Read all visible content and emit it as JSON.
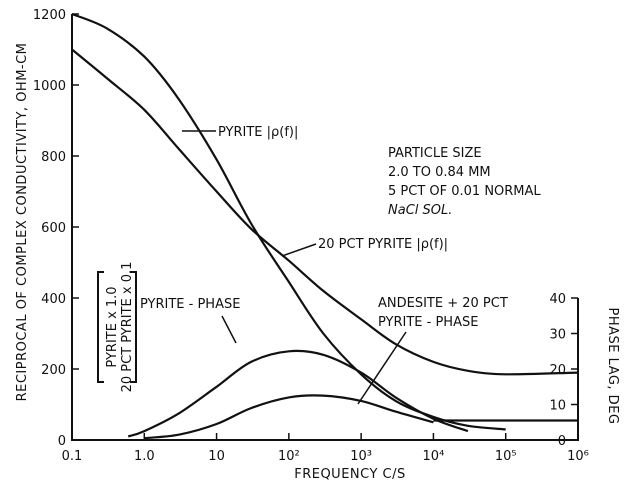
{
  "chart_data": {
    "type": "line",
    "title": "",
    "xlabel": "FREQUENCY C/S",
    "ylabel": "RECIPROCAL OF COMPLEX CONDUCTIVITY, OHM-CM",
    "ylabel_right": "PHASE LAG, DEG",
    "x_scale": "log",
    "xlim": [
      0.1,
      1000000
    ],
    "ylim": [
      0,
      1200
    ],
    "ylim_right": [
      0,
      40
    ],
    "grid": false,
    "x_ticks": [
      "0.1",
      "1.0",
      "10",
      "10²",
      "10³",
      "10⁴",
      "10⁵",
      "10⁶"
    ],
    "y_ticks": [
      "0",
      "200",
      "400",
      "600",
      "800",
      "1000",
      "1200"
    ],
    "y_ticks_right": [
      "0",
      "10",
      "20",
      "30",
      "40"
    ],
    "series": [
      {
        "name": "PYRITE |ρ(f)|",
        "axis": "left",
        "x": [
          0.1,
          0.3,
          1,
          3,
          10,
          30,
          100,
          300,
          1000,
          3000,
          10000,
          30000,
          100000
        ],
        "y": [
          1200,
          1160,
          1080,
          960,
          790,
          610,
          445,
          300,
          185,
          110,
          65,
          40,
          30
        ]
      },
      {
        "name": "20 PCT PYRITE |ρ(f)|",
        "axis": "left",
        "x": [
          0.1,
          0.3,
          1,
          3,
          10,
          30,
          100,
          300,
          1000,
          3000,
          10000,
          30000,
          100000,
          1000000
        ],
        "y": [
          1100,
          1020,
          930,
          820,
          700,
          595,
          505,
          420,
          340,
          270,
          220,
          195,
          185,
          190
        ]
      },
      {
        "name": "PYRITE-PHASE",
        "axis": "right",
        "x": [
          0.6,
          1,
          3,
          10,
          30,
          100,
          300,
          1000,
          3000,
          10000,
          30000
        ],
        "y": [
          1,
          2.5,
          7.5,
          15,
          22,
          25,
          24,
          19,
          12,
          6,
          2.5
        ]
      },
      {
        "name": "ANDESITE + 20 PCT PYRITE-PHASE",
        "axis": "right",
        "x": [
          1,
          3,
          10,
          30,
          100,
          300,
          1000,
          3000,
          10000
        ],
        "y": [
          0.5,
          1.5,
          4.5,
          9,
          12,
          12.5,
          11,
          8,
          5
        ]
      },
      {
        "name": "",
        "axis": "left",
        "x": [
          10000,
          30000,
          100000,
          1000000
        ],
        "y": [
          55,
          55,
          55,
          55
        ]
      }
    ],
    "annotations": {
      "particle": [
        "PARTICLE SIZE",
        "2.0 TO 0.84 MM",
        "5 PCT OF 0.01 NORMAL",
        "NaCl SOL."
      ],
      "pyrite_abs": "PYRITE |ρ(f)|",
      "pct20_abs": "20 PCT PYRITE |ρ(f)|",
      "pyrite_phase": "PYRITE - PHASE",
      "andesite": [
        "ANDESITE + 20 PCT",
        "PYRITE - PHASE"
      ],
      "scale_bracket": [
        "PYRITE x 1.0",
        "20 PCT PYRITE x 0.1"
      ]
    }
  }
}
